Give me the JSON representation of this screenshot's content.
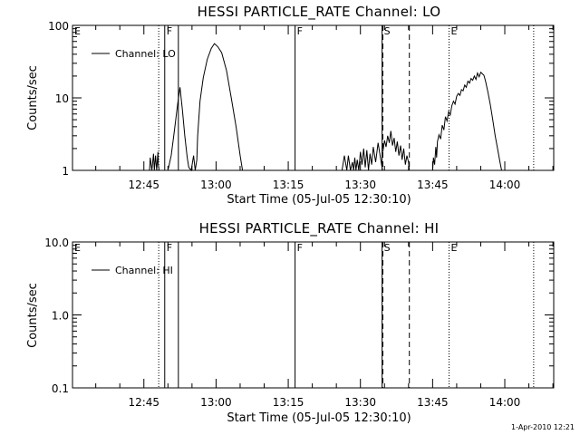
{
  "footer": {
    "timestamp": "1-Apr-2010 12:21"
  },
  "chart_data": [
    {
      "type": "line",
      "title": "HESSI PARTICLE_RATE Channel: LO",
      "xlabel": "Start Time (05-Jul-05 12:30:10)",
      "ylabel": "Counts/sec",
      "y_scale": "log",
      "xlim": [
        "12:30:10",
        "14:10:10"
      ],
      "ylim": [
        1,
        100
      ],
      "x_ticks": [
        "12:45",
        "13:00",
        "13:15",
        "13:30",
        "13:45",
        "14:00"
      ],
      "y_ticks": [
        "1",
        "10",
        "100"
      ],
      "legend": {
        "position": "top-left",
        "entries": [
          "Channel: LO"
        ]
      },
      "markers": [
        {
          "label": "E",
          "time": "12:30:10",
          "style": "dotted"
        },
        {
          "label": "",
          "time": "12:48:05",
          "style": "dotted"
        },
        {
          "label": "F",
          "time": "12:49:20",
          "style": "solid"
        },
        {
          "label": "",
          "time": "12:52:10",
          "style": "solid"
        },
        {
          "label": "F",
          "time": "13:16:25",
          "style": "solid"
        },
        {
          "label": "S",
          "time": "13:34:30",
          "style": "solid"
        },
        {
          "label": "",
          "time": "13:34:40",
          "style": "dashed"
        },
        {
          "label": "",
          "time": "13:40:10",
          "style": "dashed"
        },
        {
          "label": "E",
          "time": "13:48:25",
          "style": "dotted"
        },
        {
          "label": "",
          "time": "14:06:00",
          "style": "dotted"
        }
      ],
      "series": [
        {
          "name": "Channel: LO",
          "segments": [
            {
              "x": [
                "12:46:10",
                "12:46:20",
                "12:46:40",
                "12:47:00",
                "12:47:10",
                "12:47:25",
                "12:47:40",
                "12:47:55",
                "12:48:00",
                "12:48:10"
              ],
              "y": [
                1,
                1.5,
                1,
                1.7,
                1,
                1.6,
                1,
                1.8,
                1.2,
                1
              ]
            },
            {
              "x": [
                "12:50:00",
                "12:50:40",
                "12:51:20",
                "12:52:00",
                "12:52:30",
                "12:53:00",
                "12:53:30",
                "12:54:00",
                "12:54:20",
                "12:54:50",
                "12:55:20",
                "12:55:40",
                "12:56:00",
                "12:56:10",
                "12:56:40",
                "12:57:20",
                "12:58:10",
                "12:59:00",
                "12:59:40",
                "13:00:20",
                "13:01:10",
                "13:02:10",
                "13:03:10",
                "13:04:10",
                "13:05:00",
                "13:05:30"
              ],
              "y": [
                1,
                1.6,
                3.5,
                8,
                14,
                7,
                3,
                1.5,
                1.1,
                1,
                1.6,
                1,
                1.4,
                3,
                9,
                19,
                34,
                48,
                56,
                51,
                42,
                24,
                10,
                4,
                1.6,
                1
              ]
            },
            {
              "x": [
                "13:26:10",
                "13:26:40",
                "13:27:10",
                "13:27:30",
                "13:27:55",
                "13:28:20",
                "13:28:35",
                "13:28:50",
                "13:29:05",
                "13:29:20",
                "13:29:40",
                "13:30:00",
                "13:30:20",
                "13:30:40",
                "13:31:00",
                "13:31:20",
                "13:31:40",
                "13:32:00",
                "13:32:20",
                "13:32:40",
                "13:33:10",
                "13:33:40",
                "13:34:10",
                "13:34:35"
              ],
              "y": [
                1,
                1.6,
                1,
                1.6,
                1,
                1.3,
                1,
                1.5,
                1,
                1.4,
                1,
                1.8,
                1.2,
                2,
                1.1,
                1.9,
                1,
                1.7,
                1.2,
                2.1,
                1.3,
                2.4,
                1.5,
                1
              ]
            },
            {
              "x": [
                "13:34:40",
                "13:35:00",
                "13:35:20",
                "13:35:40",
                "13:36:00",
                "13:36:20",
                "13:36:40",
                "13:37:00",
                "13:37:20",
                "13:37:40",
                "13:38:00",
                "13:38:20",
                "13:38:40",
                "13:39:00",
                "13:39:20",
                "13:39:40",
                "13:40:00",
                "13:40:10"
              ],
              "y": [
                1.8,
                2.6,
                2.1,
                3,
                2.4,
                3.5,
                2.2,
                2.8,
                1.8,
                2.5,
                1.6,
                2.2,
                1.4,
                2,
                1.2,
                1.6,
                1.3,
                1
              ]
            },
            {
              "x": [
                "13:45:00",
                "13:45:10",
                "13:45:25",
                "13:45:40",
                "13:45:50",
                "13:46:00",
                "13:46:20",
                "13:46:40",
                "13:47:00",
                "13:47:20",
                "13:47:40",
                "13:48:00",
                "13:48:20",
                "13:48:40",
                "13:49:00",
                "13:49:20",
                "13:49:40",
                "13:50:00",
                "13:50:20",
                "13:50:40",
                "13:51:00",
                "13:51:20",
                "13:51:40",
                "13:52:00",
                "13:52:20",
                "13:52:40",
                "13:53:00",
                "13:53:20",
                "13:53:40",
                "13:54:00",
                "13:54:20",
                "13:54:40",
                "13:55:00",
                "13:55:20",
                "13:55:40",
                "13:56:00",
                "13:56:30",
                "13:57:00",
                "13:57:30",
                "13:58:00",
                "13:58:30",
                "13:59:00",
                "13:59:20"
              ],
              "y": [
                1,
                1.5,
                1.2,
                2.1,
                1.5,
                2.5,
                3.1,
                2.7,
                4.2,
                3.6,
                5.5,
                4.8,
                6.5,
                5.8,
                7.8,
                9,
                8.2,
                10.5,
                11.5,
                10.8,
                13,
                12.5,
                15,
                14,
                17,
                16,
                18.5,
                17.5,
                20,
                18,
                22,
                19.5,
                22.5,
                21.5,
                20.5,
                17,
                12,
                8,
                5,
                3,
                2,
                1.3,
                1
              ]
            }
          ]
        }
      ]
    },
    {
      "type": "line",
      "title": "HESSI PARTICLE_RATE Channel: HI",
      "xlabel": "Start Time (05-Jul-05 12:30:10)",
      "ylabel": "Counts/sec",
      "y_scale": "log",
      "xlim": [
        "12:30:10",
        "14:10:10"
      ],
      "ylim": [
        0.1,
        10.0
      ],
      "x_ticks": [
        "12:45",
        "13:00",
        "13:15",
        "13:30",
        "13:45",
        "14:00"
      ],
      "y_ticks": [
        "0.1",
        "1.0",
        "10.0"
      ],
      "legend": {
        "position": "top-left",
        "entries": [
          "Channel: HI"
        ]
      },
      "markers": [
        {
          "label": "E",
          "time": "12:30:10",
          "style": "dotted"
        },
        {
          "label": "",
          "time": "12:48:05",
          "style": "dotted"
        },
        {
          "label": "F",
          "time": "12:49:20",
          "style": "solid"
        },
        {
          "label": "",
          "time": "12:52:10",
          "style": "solid"
        },
        {
          "label": "F",
          "time": "13:16:25",
          "style": "solid"
        },
        {
          "label": "S",
          "time": "13:34:30",
          "style": "solid"
        },
        {
          "label": "",
          "time": "13:34:40",
          "style": "dashed"
        },
        {
          "label": "",
          "time": "13:40:10",
          "style": "dashed"
        },
        {
          "label": "E",
          "time": "13:48:25",
          "style": "dotted"
        },
        {
          "label": "",
          "time": "14:06:00",
          "style": "dotted"
        }
      ],
      "series": [
        {
          "name": "Channel: HI",
          "segments": []
        }
      ]
    }
  ]
}
